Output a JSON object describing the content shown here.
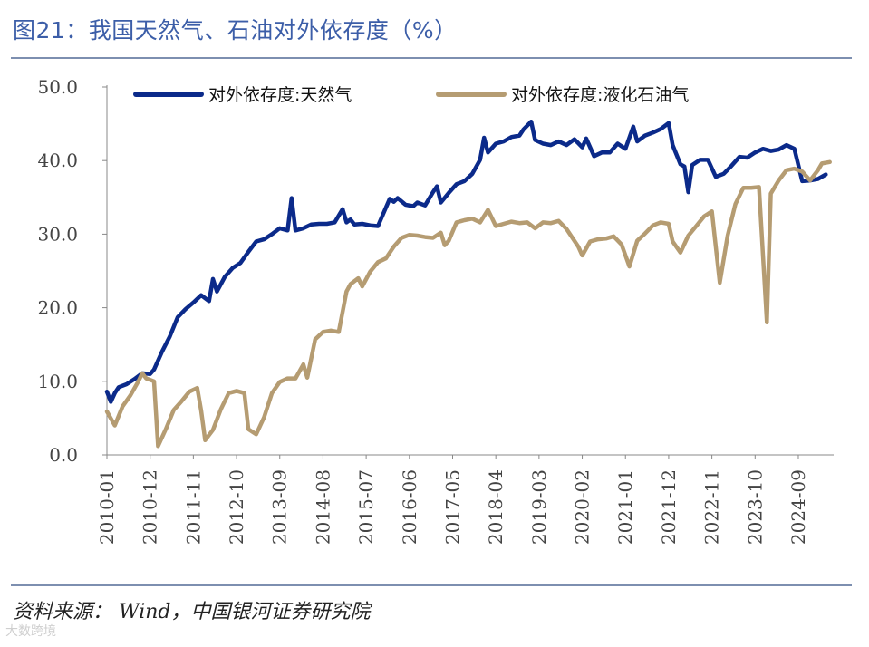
{
  "header": {
    "title": "图21：我国天然气、石油对外依存度（%）"
  },
  "footer": {
    "source": "资料来源：  Wind，中国银河证券研究院",
    "watermark": "大数跨境"
  },
  "colors": {
    "gas": "#0b2a8a",
    "lpg": "#b59c72",
    "axis": "#888888"
  },
  "chart_data": {
    "type": "line",
    "title": "图21：我国天然气、石油对外依存度（%）",
    "xlabel": "",
    "ylabel": "",
    "ylim": [
      0,
      50
    ],
    "yticks": [
      "0.0",
      "10.0",
      "20.0",
      "30.0",
      "40.0",
      "50.0"
    ],
    "xticks": [
      "2010-01",
      "2010-12",
      "2011-11",
      "2012-10",
      "2013-09",
      "2014-08",
      "2015-07",
      "2016-06",
      "2017-05",
      "2018-04",
      "2019-03",
      "2020-02",
      "2021-01",
      "2021-12",
      "2022-11",
      "2023-10",
      "2024-09"
    ],
    "x_start": "2010-01",
    "x_end": "2025-06",
    "legend_position": "top",
    "grid": false,
    "series": [
      {
        "name": "对外依存度:天然气",
        "color": "#0b2a8a",
        "points": [
          [
            "2010-01",
            8.6
          ],
          [
            "2010-02",
            7.2
          ],
          [
            "2010-03",
            8.4
          ],
          [
            "2010-04",
            9.2
          ],
          [
            "2010-06",
            9.6
          ],
          [
            "2010-08",
            10.3
          ],
          [
            "2010-10",
            11.1
          ],
          [
            "2010-12",
            11.0
          ],
          [
            "2011-01",
            11.6
          ],
          [
            "2011-03",
            14.0
          ],
          [
            "2011-05",
            16.1
          ],
          [
            "2011-07",
            18.7
          ],
          [
            "2011-09",
            19.8
          ],
          [
            "2011-11",
            20.7
          ],
          [
            "2012-01",
            21.7
          ],
          [
            "2012-03",
            20.9
          ],
          [
            "2012-04",
            23.9
          ],
          [
            "2012-05",
            22.2
          ],
          [
            "2012-07",
            24.2
          ],
          [
            "2012-09",
            25.4
          ],
          [
            "2012-11",
            26.1
          ],
          [
            "2013-01",
            27.6
          ],
          [
            "2013-03",
            29.0
          ],
          [
            "2013-05",
            29.3
          ],
          [
            "2013-07",
            30.0
          ],
          [
            "2013-09",
            30.8
          ],
          [
            "2013-11",
            30.5
          ],
          [
            "2013-12",
            34.9
          ],
          [
            "2014-01",
            30.5
          ],
          [
            "2014-03",
            30.8
          ],
          [
            "2014-05",
            31.3
          ],
          [
            "2014-07",
            31.4
          ],
          [
            "2014-09",
            31.4
          ],
          [
            "2014-11",
            31.6
          ],
          [
            "2015-01",
            33.4
          ],
          [
            "2015-02",
            31.6
          ],
          [
            "2015-03",
            32.0
          ],
          [
            "2015-04",
            31.3
          ],
          [
            "2015-06",
            31.4
          ],
          [
            "2015-08",
            31.2
          ],
          [
            "2015-10",
            31.1
          ],
          [
            "2016-01",
            34.8
          ],
          [
            "2016-02",
            34.4
          ],
          [
            "2016-03",
            34.9
          ],
          [
            "2016-05",
            34.0
          ],
          [
            "2016-07",
            33.8
          ],
          [
            "2016-08",
            34.3
          ],
          [
            "2016-10",
            33.9
          ],
          [
            "2016-12",
            35.7
          ],
          [
            "2017-01",
            36.5
          ],
          [
            "2017-02",
            34.3
          ],
          [
            "2017-04",
            35.6
          ],
          [
            "2017-06",
            36.8
          ],
          [
            "2017-08",
            37.2
          ],
          [
            "2017-10",
            38.2
          ],
          [
            "2017-12",
            40.1
          ],
          [
            "2018-01",
            43.1
          ],
          [
            "2018-02",
            41.1
          ],
          [
            "2018-04",
            42.3
          ],
          [
            "2018-06",
            42.6
          ],
          [
            "2018-08",
            43.2
          ],
          [
            "2018-10",
            43.4
          ],
          [
            "2018-11",
            44.2
          ],
          [
            "2019-01",
            45.3
          ],
          [
            "2019-02",
            42.8
          ],
          [
            "2019-04",
            42.3
          ],
          [
            "2019-06",
            42.1
          ],
          [
            "2019-08",
            42.6
          ],
          [
            "2019-10",
            42.1
          ],
          [
            "2019-12",
            42.9
          ],
          [
            "2020-02",
            41.8
          ],
          [
            "2020-03",
            43.0
          ],
          [
            "2020-05",
            40.6
          ],
          [
            "2020-07",
            41.1
          ],
          [
            "2020-09",
            41.1
          ],
          [
            "2020-11",
            42.3
          ],
          [
            "2021-01",
            41.6
          ],
          [
            "2021-03",
            44.6
          ],
          [
            "2021-04",
            42.6
          ],
          [
            "2021-06",
            43.4
          ],
          [
            "2021-08",
            43.8
          ],
          [
            "2021-10",
            44.3
          ],
          [
            "2021-12",
            45.1
          ],
          [
            "2022-01",
            42.1
          ],
          [
            "2022-03",
            39.5
          ],
          [
            "2022-04",
            39.2
          ],
          [
            "2022-05",
            35.7
          ],
          [
            "2022-06",
            39.4
          ],
          [
            "2022-08",
            40.1
          ],
          [
            "2022-10",
            40.1
          ],
          [
            "2022-12",
            37.8
          ],
          [
            "2023-02",
            38.2
          ],
          [
            "2023-04",
            39.3
          ],
          [
            "2023-06",
            40.5
          ],
          [
            "2023-08",
            40.4
          ],
          [
            "2023-10",
            41.1
          ],
          [
            "2023-12",
            41.6
          ],
          [
            "2024-02",
            41.3
          ],
          [
            "2024-04",
            41.5
          ],
          [
            "2024-06",
            42.1
          ],
          [
            "2024-08",
            41.6
          ],
          [
            "2024-10",
            37.2
          ],
          [
            "2024-12",
            37.3
          ],
          [
            "2025-02",
            37.5
          ],
          [
            "2025-04",
            38.1
          ]
        ]
      },
      {
        "name": "对外依存度:液化石油气",
        "color": "#b59c72",
        "points": [
          [
            "2010-01",
            5.9
          ],
          [
            "2010-03",
            4.0
          ],
          [
            "2010-05",
            6.6
          ],
          [
            "2010-07",
            8.1
          ],
          [
            "2010-09",
            10.0
          ],
          [
            "2010-10",
            11.1
          ],
          [
            "2010-11",
            10.4
          ],
          [
            "2011-01",
            10.0
          ],
          [
            "2011-02",
            1.2
          ],
          [
            "2011-04",
            3.5
          ],
          [
            "2011-06",
            6.1
          ],
          [
            "2011-08",
            7.3
          ],
          [
            "2011-10",
            8.6
          ],
          [
            "2011-12",
            9.1
          ],
          [
            "2012-01",
            6.0
          ],
          [
            "2012-02",
            2.0
          ],
          [
            "2012-04",
            3.4
          ],
          [
            "2012-06",
            6.2
          ],
          [
            "2012-08",
            8.4
          ],
          [
            "2012-10",
            8.7
          ],
          [
            "2012-12",
            8.4
          ],
          [
            "2013-01",
            3.5
          ],
          [
            "2013-03",
            2.8
          ],
          [
            "2013-05",
            5.1
          ],
          [
            "2013-07",
            8.4
          ],
          [
            "2013-09",
            9.9
          ],
          [
            "2013-11",
            10.4
          ],
          [
            "2014-01",
            10.4
          ],
          [
            "2014-03",
            12.3
          ],
          [
            "2014-04",
            10.5
          ],
          [
            "2014-06",
            15.7
          ],
          [
            "2014-08",
            16.7
          ],
          [
            "2014-10",
            16.9
          ],
          [
            "2014-12",
            16.7
          ],
          [
            "2015-02",
            22.2
          ],
          [
            "2015-03",
            23.2
          ],
          [
            "2015-05",
            24.0
          ],
          [
            "2015-06",
            22.9
          ],
          [
            "2015-08",
            24.9
          ],
          [
            "2015-10",
            26.2
          ],
          [
            "2015-12",
            26.7
          ],
          [
            "2016-02",
            28.3
          ],
          [
            "2016-04",
            29.5
          ],
          [
            "2016-06",
            29.9
          ],
          [
            "2016-08",
            29.8
          ],
          [
            "2016-10",
            29.6
          ],
          [
            "2016-12",
            29.5
          ],
          [
            "2017-02",
            30.2
          ],
          [
            "2017-03",
            28.5
          ],
          [
            "2017-04",
            29.1
          ],
          [
            "2017-06",
            31.6
          ],
          [
            "2017-08",
            31.9
          ],
          [
            "2017-10",
            32.1
          ],
          [
            "2017-12",
            31.6
          ],
          [
            "2018-02",
            33.3
          ],
          [
            "2018-04",
            31.1
          ],
          [
            "2018-06",
            31.4
          ],
          [
            "2018-08",
            31.7
          ],
          [
            "2018-10",
            31.5
          ],
          [
            "2018-12",
            31.6
          ],
          [
            "2019-02",
            30.8
          ],
          [
            "2019-04",
            31.6
          ],
          [
            "2019-06",
            31.5
          ],
          [
            "2019-08",
            31.8
          ],
          [
            "2019-10",
            30.7
          ],
          [
            "2020-01",
            28.3
          ],
          [
            "2020-02",
            27.1
          ],
          [
            "2020-04",
            29.0
          ],
          [
            "2020-06",
            29.3
          ],
          [
            "2020-08",
            29.4
          ],
          [
            "2020-10",
            29.7
          ],
          [
            "2020-12",
            28.6
          ],
          [
            "2021-02",
            25.6
          ],
          [
            "2021-04",
            29.1
          ],
          [
            "2021-06",
            30.1
          ],
          [
            "2021-08",
            31.2
          ],
          [
            "2021-10",
            31.6
          ],
          [
            "2021-12",
            31.4
          ],
          [
            "2022-01",
            29.0
          ],
          [
            "2022-03",
            27.5
          ],
          [
            "2022-05",
            29.8
          ],
          [
            "2022-07",
            31.1
          ],
          [
            "2022-09",
            32.4
          ],
          [
            "2022-11",
            33.1
          ],
          [
            "2023-01",
            23.4
          ],
          [
            "2023-03",
            29.8
          ],
          [
            "2023-05",
            34.1
          ],
          [
            "2023-07",
            36.3
          ],
          [
            "2023-09",
            36.3
          ],
          [
            "2023-11",
            36.4
          ],
          [
            "2024-01",
            18.0
          ],
          [
            "2024-02",
            35.5
          ],
          [
            "2024-04",
            37.3
          ],
          [
            "2024-06",
            38.7
          ],
          [
            "2024-08",
            38.9
          ],
          [
            "2024-10",
            38.5
          ],
          [
            "2024-12",
            37.3
          ],
          [
            "2025-02",
            38.7
          ],
          [
            "2025-03",
            39.6
          ],
          [
            "2025-05",
            39.8
          ]
        ]
      }
    ]
  }
}
